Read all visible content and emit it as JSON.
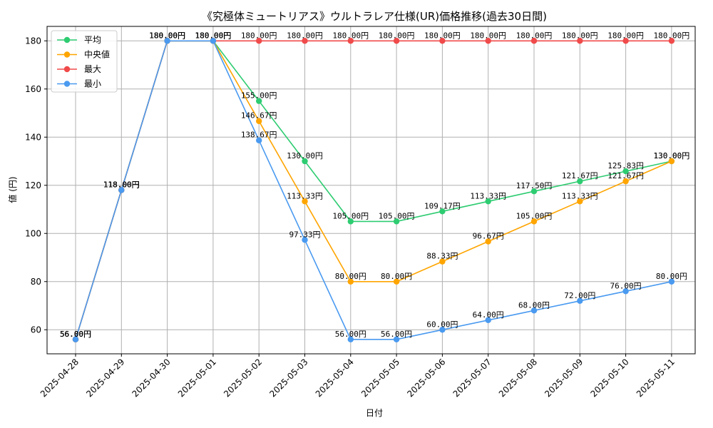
{
  "chart_data": {
    "type": "line",
    "title": "《究極体ミュートリアス》ウルトラレア仕様(UR)価格推移(過去30日間)",
    "xlabel": "日付",
    "ylabel": "値 (円)",
    "ylim": [
      50,
      186
    ],
    "yticks": [
      60,
      80,
      100,
      120,
      140,
      160,
      180
    ],
    "grid": true,
    "legend_position": "top-left",
    "label_suffix": "円",
    "categories": [
      "2025-04-28",
      "2025-04-29",
      "2025-04-30",
      "2025-05-01",
      "2025-05-02",
      "2025-05-03",
      "2025-05-04",
      "2025-05-05",
      "2025-05-06",
      "2025-05-07",
      "2025-05-08",
      "2025-05-09",
      "2025-05-10",
      "2025-05-11"
    ],
    "series": [
      {
        "name": "平均",
        "color": "#2ecc71",
        "values": [
          56.0,
          118.0,
          180.0,
          180.0,
          155.0,
          130.0,
          105.0,
          105.0,
          109.17,
          113.33,
          117.5,
          121.67,
          125.83,
          130.0
        ]
      },
      {
        "name": "中央値",
        "color": "#ffa500",
        "values": [
          56.0,
          118.0,
          180.0,
          180.0,
          146.67,
          113.33,
          80.0,
          80.0,
          88.33,
          96.67,
          105.0,
          113.33,
          121.67,
          130.0
        ]
      },
      {
        "name": "最大",
        "color": "#f04a4a",
        "values": [
          56.0,
          118.0,
          180.0,
          180.0,
          180.0,
          180.0,
          180.0,
          180.0,
          180.0,
          180.0,
          180.0,
          180.0,
          180.0,
          180.0
        ]
      },
      {
        "name": "最小",
        "color": "#4a9af0",
        "values": [
          56.0,
          118.0,
          180.0,
          180.0,
          138.67,
          97.33,
          56.0,
          56.0,
          60.0,
          64.0,
          68.0,
          72.0,
          76.0,
          80.0
        ]
      }
    ]
  }
}
